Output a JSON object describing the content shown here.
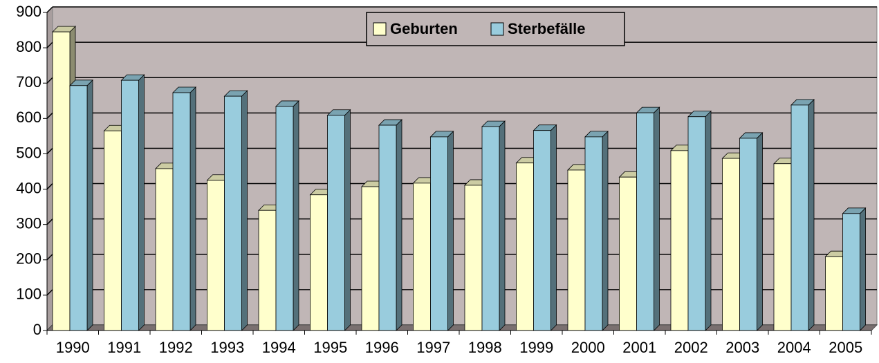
{
  "chart_data": {
    "type": "bar3d",
    "categories": [
      "1990",
      "1991",
      "1992",
      "1993",
      "1994",
      "1995",
      "1996",
      "1997",
      "1998",
      "1999",
      "2000",
      "2001",
      "2002",
      "2003",
      "2004",
      "2005"
    ],
    "series": [
      {
        "name": "Geburten",
        "color": "#ffffcc",
        "values": [
          845,
          565,
          458,
          425,
          340,
          384,
          407,
          417,
          411,
          474,
          454,
          434,
          509,
          487,
          472,
          209
        ]
      },
      {
        "name": "Sterbefälle",
        "color": "#99ccdd",
        "values": [
          693,
          708,
          673,
          663,
          634,
          609,
          581,
          548,
          577,
          566,
          548,
          616,
          605,
          544,
          638,
          331
        ]
      }
    ],
    "ylim": [
      0,
      900
    ],
    "yticks": [
      0,
      100,
      200,
      300,
      400,
      500,
      600,
      700,
      800,
      900
    ],
    "grid": true,
    "legend": "top"
  }
}
